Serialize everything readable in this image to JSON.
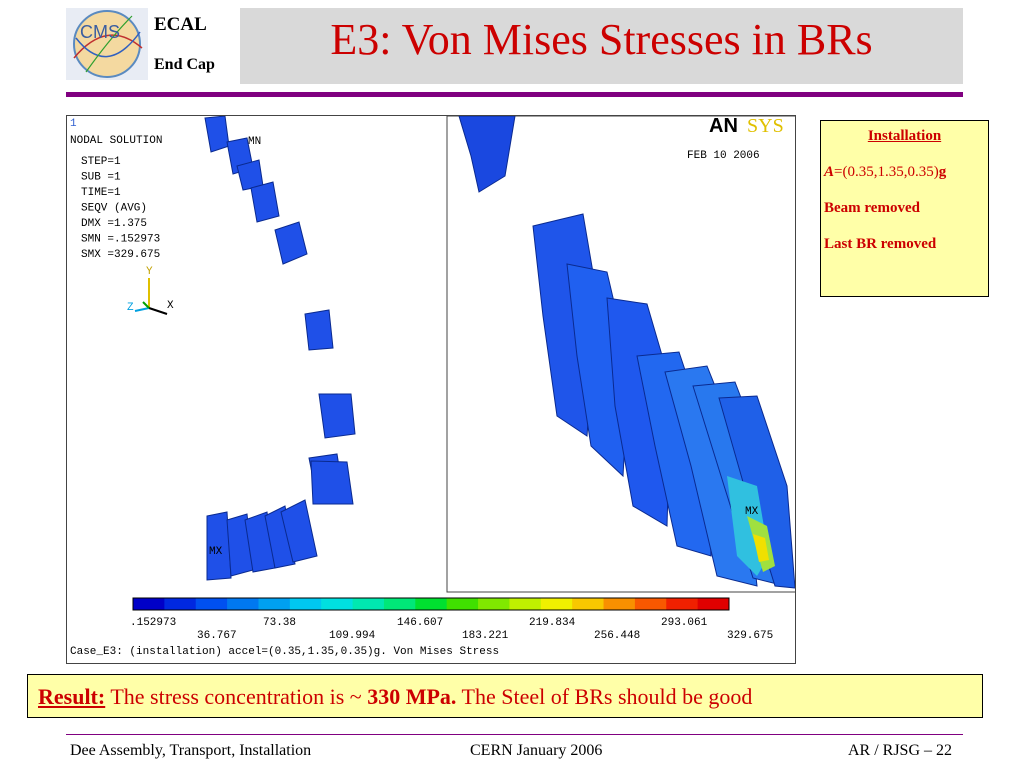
{
  "header": {
    "logo_text": "CMS",
    "line1": "ECAL",
    "line2": "End Cap",
    "title": "E3: Von Mises Stresses in BRs"
  },
  "figure": {
    "window_number": "1",
    "solution_lines": [
      "NODAL SOLUTION",
      "STEP=1",
      "SUB =1",
      "TIME=1",
      "SEQV     (AVG)",
      "DMX =1.375",
      "SMN =.152973",
      "SMX =329.675"
    ],
    "mn_label": "MN",
    "mx_label": "MX",
    "axis_y": "Y",
    "axis_x": "X",
    "axis_z": "Z",
    "brand_an": "AN",
    "brand_sys": "SYS",
    "date": "FEB 10 2006",
    "legend_top": [
      ".152973",
      "73.38",
      "146.607",
      "219.834",
      "293.061"
    ],
    "legend_bottom": [
      "36.767",
      "109.994",
      "183.221",
      "256.448",
      "329.675"
    ],
    "legend_colors": [
      "#0000c8",
      "#0028e0",
      "#0050f0",
      "#0078f0",
      "#00a0f0",
      "#00c8f0",
      "#00e0e0",
      "#00e8b0",
      "#00e878",
      "#00e030",
      "#40e000",
      "#80e800",
      "#c0f000",
      "#f0f000",
      "#f8c800",
      "#f89000",
      "#f85800",
      "#f02000",
      "#e00000"
    ],
    "caption": "Case_E3: (installation) accel=(0.35,1.35,0.35)g. Von Mises Stress"
  },
  "info": {
    "heading": "Installation",
    "accel_symbol": "A",
    "accel_value": "=(0.35,1.35,0.35)",
    "accel_unit": "g",
    "line3": "Beam removed",
    "line4": "Last BR removed"
  },
  "result": {
    "label": "Result:",
    "text1": " The stress concentration is ~ ",
    "value": "330 MPa.",
    "text2": " The Steel of BRs should be good"
  },
  "footer": {
    "left": "Dee Assembly, Transport, Installation",
    "middle": "CERN  January 2006",
    "right": "AR / RJSG – 22"
  }
}
